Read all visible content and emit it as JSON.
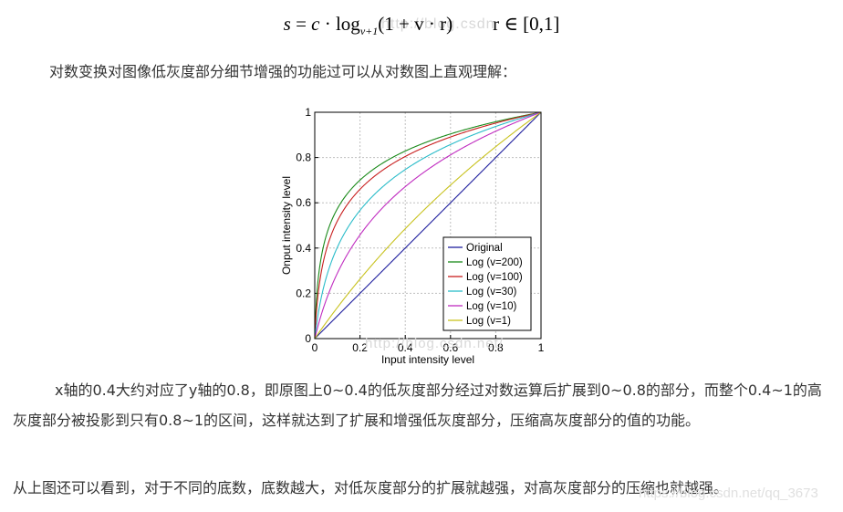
{
  "formula": {
    "lhs": "s",
    "eq": " = ",
    "c": "c",
    "dot": " · log",
    "sub": "v+1",
    "arg": "(1 + v · r)",
    "cond": "r ∈ [0,1]"
  },
  "paragraph_intro": "对数变换对图像低灰度部分细节增强的功能过可以从对数图上直观理解：",
  "paragraph_explain": "x轴的0.4大约对应了y轴的0.8，即原图上0~0.4的低灰度部分经过对数运算后扩展到0~0.8的部分，而整个0.4~1的高灰度部分被投影到只有0.8~1的区间，这样就达到了扩展和增强低灰度部分，压缩高灰度部分的值的功能。",
  "paragraph_conclusion": "从上图还可以看到，对于不同的底数，底数越大，对低灰度部分的扩展就越强，对高灰度部分的压缩也就越强。",
  "watermarks": {
    "top": "http://blog.csdn",
    "figure": "http://blog.csdn.net/",
    "bottom": "https://blog.csdn.net/qq_3673"
  },
  "chart_data": {
    "type": "line",
    "xlabel": "Input intensity level",
    "ylabel": "Onput intensity level",
    "xlim": [
      0,
      1
    ],
    "ylim": [
      0,
      1
    ],
    "xticks": [
      "0",
      "0.2",
      "0.4",
      "0.6",
      "0.8",
      "1"
    ],
    "yticks": [
      "0",
      "0.2",
      "0.4",
      "0.6",
      "0.8",
      "1"
    ],
    "grid": true,
    "legend_position": "bottom-right",
    "series": [
      {
        "name": "Original",
        "v": 0,
        "color": "#1f1f9e"
      },
      {
        "name": "Log (v=200)",
        "v": 200,
        "color": "#1a8a1a"
      },
      {
        "name": "Log (v=100)",
        "v": 100,
        "color": "#c81e1e"
      },
      {
        "name": "Log (v=30)",
        "v": 30,
        "color": "#2bbcc9"
      },
      {
        "name": "Log (v=10)",
        "v": 10,
        "color": "#c02cc0"
      },
      {
        "name": "Log (v=1)",
        "v": 1,
        "color": "#c8c21e"
      }
    ]
  }
}
